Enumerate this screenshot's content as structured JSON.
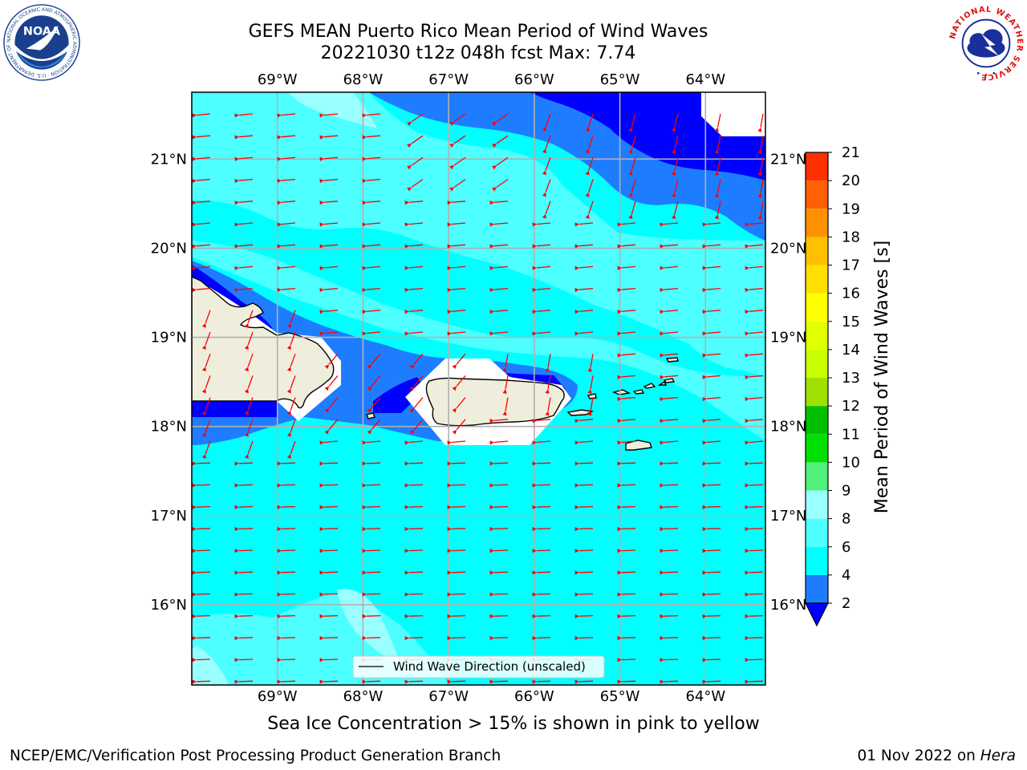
{
  "header": {
    "title_line1": "GEFS MEAN Puerto Rico Mean Period of Wind Waves",
    "title_line2": "20221030 t12z 048h fcst   Max: 7.74"
  },
  "logos": {
    "left": "NOAA",
    "left_ring_text": "NATIONAL OCEANIC AND ATMOSPHERIC ADMINISTRATION · U.S. DEPARTMENT OF COMMERCE",
    "right_ring_text": "NATIONAL WEATHER SERVICE"
  },
  "map": {
    "lon_ticks": [
      "69°W",
      "68°W",
      "67°W",
      "66°W",
      "65°W",
      "64°W"
    ],
    "lat_ticks": [
      "21°N",
      "20°N",
      "19°N",
      "18°N",
      "17°N",
      "16°N"
    ],
    "legend_label": "Wind Wave Direction (unscaled)",
    "arrow_color": "#ff0000",
    "land_color": "#efeedc",
    "lon_range": [
      -70,
      -63.3
    ],
    "lat_range": [
      15.1,
      21.75
    ]
  },
  "colorbar": {
    "title": "Mean Period of Wind Waves [s]",
    "levels": [
      "2",
      "4",
      "6",
      "8",
      "9",
      "10",
      "11",
      "12",
      "13",
      "14",
      "15",
      "16",
      "17",
      "18",
      "19",
      "20",
      "21"
    ],
    "colors": [
      "#0000ff",
      "#1e7dff",
      "#00ffff",
      "#4dffff",
      "#99ffff",
      "#50f07a",
      "#00e000",
      "#00c000",
      "#a0e000",
      "#c8ff00",
      "#e0ff00",
      "#ffff00",
      "#ffe000",
      "#ffc000",
      "#ff9000",
      "#ff6000",
      "#ff3000",
      "#ff0000"
    ]
  },
  "note": "Sea Ice Concentration > 15% is shown in pink to yellow",
  "footer": {
    "left": "NCEP/EMC/Verification Post Processing Product Generation Branch",
    "right_date": "01 Nov 2022 on ",
    "right_host": "Hera"
  }
}
